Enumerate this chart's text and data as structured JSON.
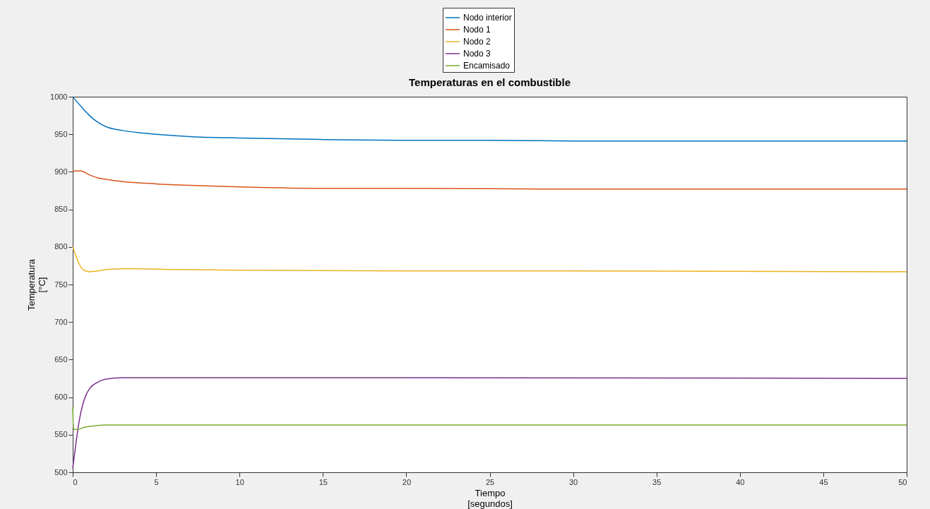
{
  "chart_data": {
    "type": "line",
    "title": "Temperaturas en el combustible",
    "xlabel": "Tiempo\n[segundos]",
    "ylabel": "Temperatura\n[°C]",
    "xlim": [
      0,
      50
    ],
    "xticks": [
      0,
      5,
      10,
      15,
      20,
      25,
      30,
      35,
      40,
      45,
      50
    ],
    "ylim": [
      500,
      1000
    ],
    "yticks": [
      500,
      550,
      600,
      650,
      700,
      750,
      800,
      850,
      900,
      950,
      1000
    ],
    "grid": false,
    "legend": "top",
    "line_style": "solid",
    "series": [
      {
        "name": "Nodo interior",
        "color": "#0072bd",
        "x": [
          0,
          0.5,
          1,
          1.5,
          2,
          3,
          4,
          5,
          7,
          10,
          15,
          20,
          25,
          30,
          40,
          50
        ],
        "values": [
          1000,
          987,
          975,
          966,
          960,
          955,
          952,
          950,
          947,
          945,
          943,
          942,
          942,
          941,
          941,
          941
        ]
      },
      {
        "name": "Nodo 1",
        "color": "#d95319",
        "x": [
          0,
          0.5,
          1,
          1.5,
          2,
          3,
          5,
          7,
          10,
          15,
          20,
          30,
          50
        ],
        "values": [
          901,
          901,
          896,
          892,
          890,
          887,
          884,
          882,
          880,
          878,
          878,
          877,
          877
        ]
      },
      {
        "name": "Nodo 2",
        "color": "#edb120",
        "x": [
          0,
          0.3,
          0.6,
          1,
          1.5,
          2,
          3,
          4,
          6,
          10,
          20,
          30,
          50
        ],
        "values": [
          800,
          782,
          770,
          767,
          768,
          770,
          771,
          771,
          770,
          769,
          768,
          768,
          767
        ]
      },
      {
        "name": "Nodo 3",
        "color": "#7e2f8e",
        "x": [
          0,
          0.2,
          0.4,
          0.6,
          0.8,
          1,
          1.5,
          2,
          3,
          5,
          10,
          20,
          50
        ],
        "values": [
          505,
          540,
          570,
          590,
          603,
          611,
          620,
          624,
          626,
          626,
          626,
          626,
          625
        ]
      },
      {
        "name": "Encamisado",
        "color": "#77ac30",
        "x": [
          0,
          0.05,
          0.3,
          0.7,
          1,
          2,
          3,
          10,
          20,
          30,
          40,
          50
        ],
        "values": [
          587,
          557,
          557,
          560,
          561,
          563,
          563,
          563,
          563,
          563,
          563,
          563
        ]
      }
    ]
  }
}
